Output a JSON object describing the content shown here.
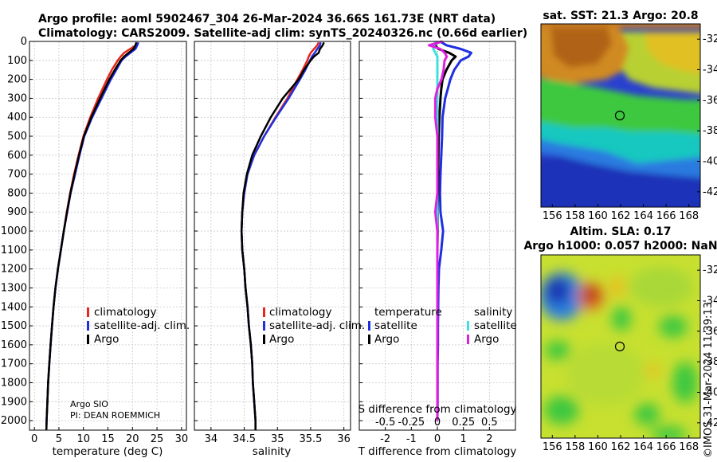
{
  "header": {
    "title_line1": "Argo profile: aoml 5902467_304 26-Mar-2024 36.66S 161.73E (NRT data)",
    "title_line2": "Climatology: CARS2009. Satellite-adj clim: synTS_20240326.nc (0.66d earlier)"
  },
  "colors": {
    "climatology": "#e8261b",
    "satellite": "#1f2ee0",
    "argo": "#000000",
    "satellite_salinity": "#3ee0e0",
    "argo_salinity": "#e020e0"
  },
  "chart_data": [
    {
      "type": "line",
      "id": "temperature",
      "xlabel": "temperature (deg C)",
      "xlim": [
        -1,
        31
      ],
      "xticks": [
        0,
        5,
        10,
        15,
        20,
        25,
        30
      ],
      "ylim": [
        2050,
        0
      ],
      "yticks": [
        0,
        100,
        200,
        300,
        400,
        500,
        600,
        700,
        800,
        900,
        1000,
        1100,
        1200,
        1300,
        1400,
        1500,
        1600,
        1700,
        1800,
        1900,
        2000
      ],
      "depth": [
        5,
        20,
        40,
        60,
        80,
        100,
        150,
        200,
        300,
        400,
        500,
        600,
        700,
        800,
        900,
        1000,
        1100,
        1200,
        1300,
        1400,
        1500,
        1600,
        1700,
        1800,
        1900,
        2000,
        2050
      ],
      "series": [
        {
          "name": "climatology",
          "values": [
            20.9,
            20.7,
            19.5,
            18.3,
            17.6,
            17.0,
            15.8,
            14.8,
            13.0,
            11.4,
            10.0,
            9.0,
            8.1,
            7.3,
            6.6,
            6.0,
            5.4,
            4.8,
            4.3,
            3.9,
            3.6,
            3.3,
            3.05,
            2.8,
            2.65,
            2.5,
            2.45
          ]
        },
        {
          "name": "satellite-adj. clim.",
          "values": [
            21.2,
            21.0,
            20.6,
            19.6,
            18.6,
            17.8,
            16.7,
            15.6,
            13.7,
            11.8,
            10.2,
            9.2,
            8.3,
            7.4,
            6.7,
            6.0,
            5.4,
            4.8,
            4.3,
            3.9,
            3.6,
            3.3,
            3.05,
            2.8,
            2.65,
            2.5,
            2.45
          ]
        },
        {
          "name": "Argo",
          "values": [
            20.8,
            20.6,
            20.2,
            19.2,
            18.3,
            17.6,
            16.4,
            15.3,
            13.4,
            11.6,
            10.1,
            9.1,
            8.2,
            7.35,
            6.65,
            6.0,
            5.4,
            4.8,
            4.3,
            3.9,
            3.6,
            3.3,
            3.05,
            2.8,
            2.65,
            2.5,
            2.45
          ]
        }
      ],
      "legend": [
        "climatology",
        "satellite-adj. clim.",
        "Argo"
      ],
      "annotations": [
        "Argo SIO",
        "PI: DEAN ROEMMICH"
      ]
    },
    {
      "type": "line",
      "id": "salinity",
      "xlabel": "salinity",
      "xlim": [
        33.75,
        36.1
      ],
      "xticks": [
        34,
        34.5,
        35,
        35.5,
        36
      ],
      "ylim": [
        2050,
        0
      ],
      "depth": [
        5,
        20,
        40,
        60,
        80,
        100,
        150,
        200,
        300,
        400,
        500,
        600,
        700,
        800,
        900,
        1000,
        1100,
        1200,
        1300,
        1400,
        1500,
        1600,
        1700,
        1800,
        1900,
        2000,
        2050
      ],
      "series": [
        {
          "name": "climatology",
          "values": [
            35.62,
            35.6,
            35.55,
            35.5,
            35.47,
            35.45,
            35.38,
            35.3,
            35.15,
            34.97,
            34.8,
            34.65,
            34.55,
            34.5,
            34.47,
            34.46,
            34.47,
            34.5,
            34.52,
            34.55,
            34.57,
            34.6,
            34.62,
            34.63,
            34.65,
            34.67,
            34.67
          ]
        },
        {
          "name": "satellite-adj. clim.",
          "values": [
            35.65,
            35.64,
            35.6,
            35.56,
            35.52,
            35.49,
            35.42,
            35.34,
            35.17,
            34.98,
            34.8,
            34.65,
            34.55,
            34.5,
            34.47,
            34.46,
            34.47,
            34.5,
            34.52,
            34.55,
            34.57,
            34.6,
            34.62,
            34.63,
            34.65,
            34.67,
            34.67
          ]
        },
        {
          "name": "Argo",
          "values": [
            35.7,
            35.68,
            35.64,
            35.62,
            35.55,
            35.5,
            35.4,
            35.32,
            35.08,
            34.9,
            34.75,
            34.62,
            34.54,
            34.49,
            34.47,
            34.46,
            34.47,
            34.5,
            34.52,
            34.55,
            34.57,
            34.6,
            34.62,
            34.63,
            34.65,
            34.67,
            34.67
          ]
        }
      ],
      "legend": [
        "climatology",
        "satellite-adj. clim.",
        "Argo"
      ]
    },
    {
      "type": "line",
      "id": "difference",
      "xlabel": "T difference from climatology",
      "xlabel_top": "S difference from climatology",
      "xlim": [
        -3,
        3
      ],
      "xticks": [
        -2,
        -1,
        0,
        1,
        2
      ],
      "xticklabels_top": [
        "-0.5",
        "-0.25",
        "0",
        "0.25",
        "0.5"
      ],
      "ylim": [
        2050,
        0
      ],
      "depth": [
        0,
        20,
        40,
        60,
        80,
        100,
        150,
        200,
        250,
        300,
        400,
        500,
        600,
        700,
        800,
        900,
        1000,
        1100,
        1200,
        1300,
        1400,
        1500,
        1600,
        1700,
        1800,
        1900,
        2000
      ],
      "series": [
        {
          "name": "temperature satellite",
          "values": [
            0.1,
            0.35,
            0.9,
            1.3,
            1.2,
            0.9,
            0.65,
            0.5,
            0.4,
            0.3,
            0.2,
            0.18,
            0.15,
            0.12,
            0.1,
            0.12,
            0.22,
            0.15,
            0.06,
            0.04,
            0.03,
            0.02,
            0.02,
            0.01,
            0.01,
            0.01,
            0.0
          ]
        },
        {
          "name": "temperature Argo",
          "values": [
            0.0,
            -0.1,
            0.05,
            0.45,
            0.7,
            0.55,
            0.35,
            0.2,
            0.15,
            0.12,
            0.08,
            0.05,
            0.04,
            0.03,
            0.02,
            0.01,
            0.01,
            0.0,
            0.0,
            0.0,
            0.0,
            0.0,
            0.0,
            0.0,
            0.0,
            0.0,
            0.0
          ]
        },
        {
          "name": "salinity satellite",
          "values": [
            -0.02,
            -0.03,
            -0.04,
            -0.02,
            0.0,
            0.0,
            0.0,
            0.0,
            0.0,
            0.0,
            0.0,
            0.0,
            0.0,
            0.0,
            0.0,
            0.0,
            0.0,
            0.0,
            0.0,
            0.0,
            0.0,
            0.0,
            0.0,
            0.0,
            0.0,
            0.0,
            0.0
          ]
        },
        {
          "name": "salinity Argo",
          "values": [
            0.05,
            -0.08,
            0.03,
            0.07,
            0.09,
            0.07,
            0.06,
            0.04,
            0.0,
            -0.02,
            -0.02,
            0.0,
            0.0,
            0.0,
            0.0,
            -0.02,
            0.0,
            0.0,
            0.0,
            0.0,
            0.0,
            0.0,
            0.0,
            0.0,
            0.0,
            0.0,
            0.0
          ]
        }
      ],
      "legend_headers": [
        "temperature",
        "salinity"
      ],
      "legend": [
        "satellite",
        "Argo",
        "satellite",
        "Argo"
      ]
    },
    {
      "type": "heatmap",
      "id": "sst-map",
      "title": "sat. SST: 21.3 Argo: 20.8",
      "xlim": [
        155,
        169
      ],
      "xticks": [
        156,
        158,
        160,
        162,
        164,
        166,
        168
      ],
      "ylim": [
        -43,
        -31
      ],
      "yticks": [
        -32,
        -34,
        -36,
        -38,
        -40,
        -42
      ],
      "marker": {
        "lon": 161.73,
        "lat": -36.66
      }
    },
    {
      "type": "heatmap",
      "id": "sla-map",
      "title_line1": "Altim. SLA: 0.17",
      "title_line2": "Argo h1000: 0.057 h2000: NaN",
      "xlim": [
        155,
        169
      ],
      "xticks": [
        156,
        158,
        160,
        162,
        164,
        166,
        168
      ],
      "ylim": [
        -43,
        -31
      ],
      "yticks": [
        -32,
        -34,
        -36,
        -38,
        -40,
        -42
      ],
      "marker": {
        "lon": 161.73,
        "lat": -36.66
      }
    }
  ],
  "footer": {
    "watermark": "©IMOS 31-Mar-2024 11:39:13"
  }
}
